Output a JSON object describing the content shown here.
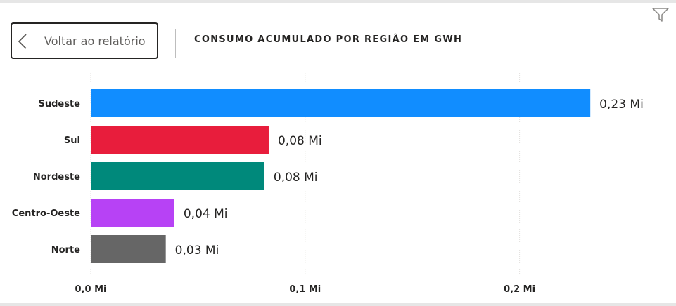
{
  "header": {
    "back_label": "Voltar ao relatório",
    "title": "CONSUMO ACUMULADO POR REGIÃO EM GWH"
  },
  "icons": {
    "filter": "filter-icon",
    "back": "chevron-left-icon"
  },
  "chart_data": {
    "type": "bar",
    "orientation": "horizontal",
    "title": "CONSUMO ACUMULADO POR REGIÃO EM GWH",
    "categories": [
      "Sudeste",
      "Sul",
      "Nordeste",
      "Centro-Oeste",
      "Norte"
    ],
    "values": [
      0.233,
      0.083,
      0.081,
      0.039,
      0.035
    ],
    "value_labels": [
      "0,23 Mi",
      "0,08 Mi",
      "0,08 Mi",
      "0,04 Mi",
      "0,03 Mi"
    ],
    "colors": [
      "#118DFF",
      "#E81D3C",
      "#00897B",
      "#B742F5",
      "#666666"
    ],
    "xlim": [
      0,
      0.25
    ],
    "xticks": [
      0,
      0.1,
      0.2
    ],
    "xtick_labels": [
      "0,0 Mi",
      "0,1 Mi",
      "0,2 Mi"
    ],
    "grid": true
  }
}
